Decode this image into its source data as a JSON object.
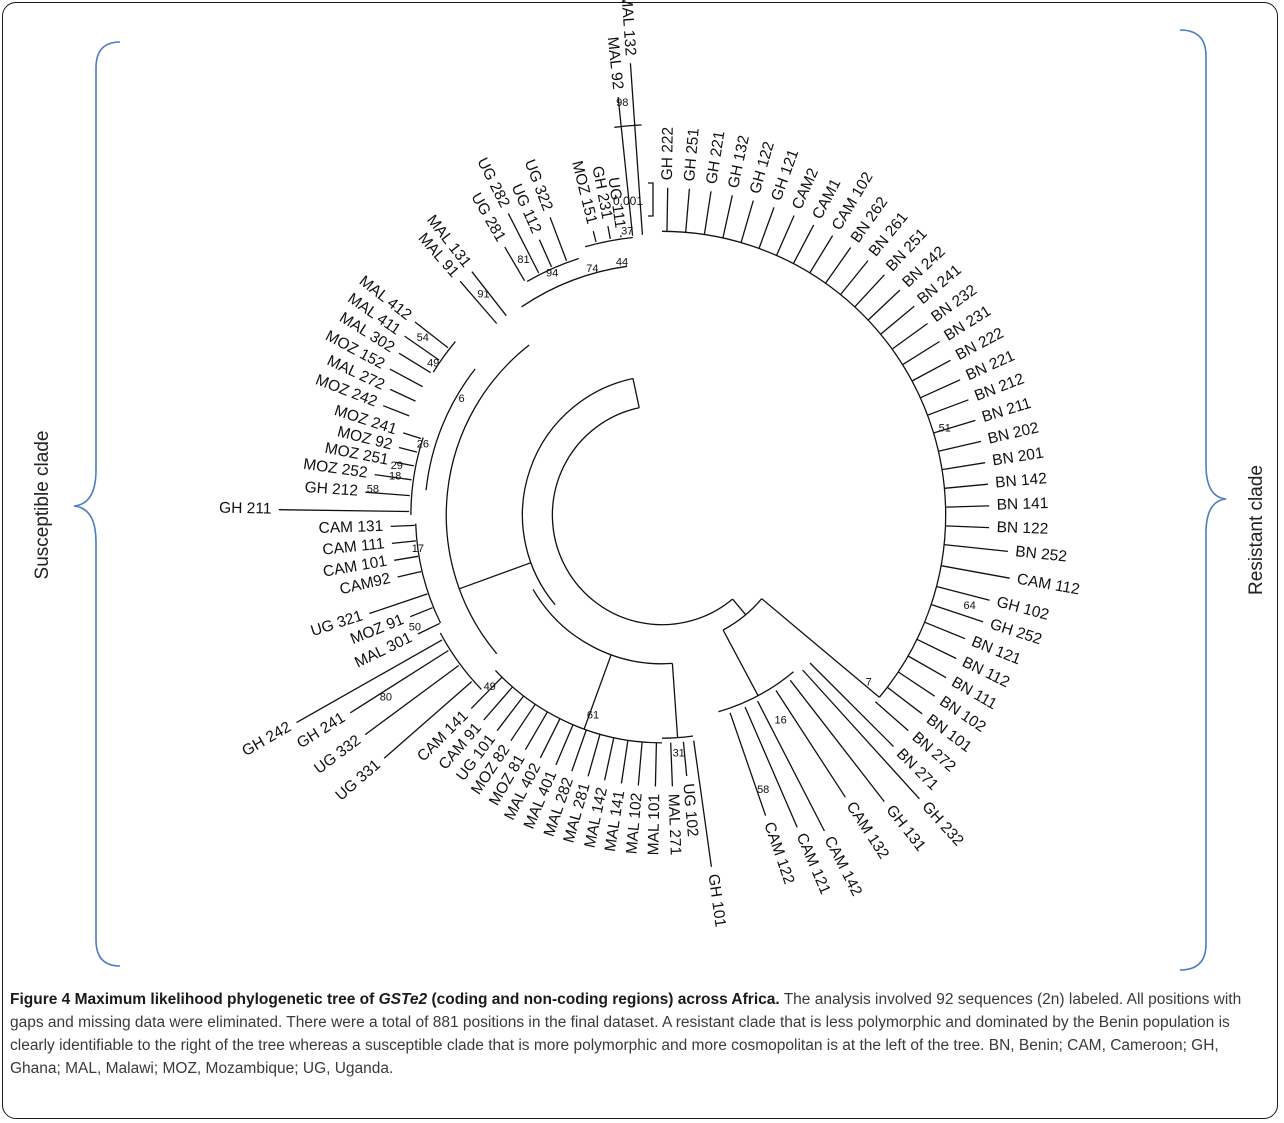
{
  "figure": {
    "scale_label": "0.001",
    "left_clade_label": "Susceptible clade",
    "right_clade_label": "Resistant clade",
    "bracket_color": "#4a7fc0",
    "caption_prefix": "Figure 4 Maximum likelihood phylogenetic tree of ",
    "caption_gene": "GSTe2",
    "caption_title_rest": " (coding and non-coding regions) across Africa.",
    "caption_body": " The analysis involved 92 sequences (2n) labeled. All positions with gaps and missing data were eliminated. There were a total of 881 positions in the final dataset. A resistant clade that is less polymorphic and dominated by the Benin population is clearly identifiable to the right of the tree whereas a susceptible clade that is more polymorphic and more cosmopolitan is at the left of the tree. BN, Benin; CAM, Cameroon; GH, Ghana; MAL, Malawi; MOZ, Mozambique; UG, Uganda."
  },
  "tips": [
    {
      "name": "GH 222",
      "theta": 271.0,
      "r": 360,
      "rot": -89
    },
    {
      "name": "GH 251",
      "theta": 274.8,
      "r": 360,
      "rot": -85
    },
    {
      "name": "GH 221",
      "theta": 278.6,
      "r": 360,
      "rot": -81
    },
    {
      "name": "GH 132",
      "theta": 282.4,
      "r": 360,
      "rot": -78
    },
    {
      "name": "GH 122",
      "theta": 286.2,
      "r": 360,
      "rot": -74
    },
    {
      "name": "GH 121",
      "theta": 290.0,
      "r": 360,
      "rot": -70
    },
    {
      "name": "CAM2",
      "theta": 293.8,
      "r": 360,
      "rot": -66
    },
    {
      "name": "CAM1",
      "theta": 297.6,
      "r": 360,
      "rot": -62
    },
    {
      "name": "CAM 102",
      "theta": 301.4,
      "r": 360,
      "rot": -59
    },
    {
      "name": "BN 262",
      "theta": 305.2,
      "r": 360,
      "rot": -55
    },
    {
      "name": "BN 261",
      "theta": 309.0,
      "r": 360,
      "rot": -51
    },
    {
      "name": "BN 251",
      "theta": 312.8,
      "r": 360,
      "rot": -47
    },
    {
      "name": "BN 242",
      "theta": 316.6,
      "r": 360,
      "rot": -43
    },
    {
      "name": "BN 241",
      "theta": 320.4,
      "r": 360,
      "rot": -40
    },
    {
      "name": "BN 232",
      "theta": 324.2,
      "r": 360,
      "rot": -36
    },
    {
      "name": "BN 231",
      "theta": 328.0,
      "r": 360,
      "rot": -32
    },
    {
      "name": "BN 222",
      "theta": 331.8,
      "r": 360,
      "rot": -28
    },
    {
      "name": "BN 221",
      "theta": 335.6,
      "r": 360,
      "rot": -24
    },
    {
      "name": "BN 212",
      "theta": 339.4,
      "r": 360,
      "rot": -21
    },
    {
      "name": "BN 211",
      "theta": 343.2,
      "r": 360,
      "rot": -17
    },
    {
      "name": "BN 202",
      "theta": 347.0,
      "r": 360,
      "rot": -13
    },
    {
      "name": "BN 201",
      "theta": 350.8,
      "r": 360,
      "rot": -9
    },
    {
      "name": "BN 142",
      "theta": 354.6,
      "r": 360,
      "rot": -5
    },
    {
      "name": "BN 141",
      "theta": 358.4,
      "r": 360,
      "rot": -2
    },
    {
      "name": "BN 122",
      "theta": 2.2,
      "r": 360,
      "rot": 2
    },
    {
      "name": "BN 252",
      "theta": 6.0,
      "r": 382,
      "rot": 6
    },
    {
      "name": "CAM 112",
      "theta": 10.3,
      "r": 388,
      "rot": 10
    },
    {
      "name": "GH 102",
      "theta": 14.6,
      "r": 372,
      "rot": 15
    },
    {
      "name": "GH 252",
      "theta": 18.4,
      "r": 372,
      "rot": 18
    },
    {
      "name": "BN 121",
      "theta": 22.2,
      "r": 360,
      "rot": 22
    },
    {
      "name": "BN 112",
      "theta": 26.0,
      "r": 360,
      "rot": 26
    },
    {
      "name": "BN 111",
      "theta": 29.8,
      "r": 360,
      "rot": 30
    },
    {
      "name": "BN 102",
      "theta": 33.6,
      "r": 360,
      "rot": 34
    },
    {
      "name": "BN 101",
      "theta": 37.4,
      "r": 360,
      "rot": 37
    },
    {
      "name": "BN 272",
      "theta": 41.2,
      "r": 360,
      "rot": 41
    },
    {
      "name": "BN 271",
      "theta": 45.0,
      "r": 360,
      "rot": 45
    },
    {
      "name": "GH 232",
      "theta": 47.8,
      "r": 420,
      "rot": 48
    },
    {
      "name": "GH 131",
      "theta": 52.2,
      "r": 398,
      "rot": 52
    },
    {
      "name": "CAM 132",
      "theta": 57.0,
      "r": 370,
      "rot": 57
    },
    {
      "name": "CAM 142",
      "theta": 62.8,
      "r": 390,
      "rot": 63
    },
    {
      "name": "CAM 121",
      "theta": 66.6,
      "r": 374,
      "rot": 67
    },
    {
      "name": "CAM 122",
      "theta": 71.0,
      "r": 350,
      "rot": 71
    },
    {
      "name": "GH 101",
      "theta": 82.0,
      "r": 390,
      "rot": 82
    },
    {
      "name": "UG 102",
      "theta": 84.6,
      "r": 290,
      "rot": 85
    },
    {
      "name": "MAL 271",
      "theta": 87.8,
      "r": 300,
      "rot": 88
    },
    {
      "name": "MAL 101",
      "theta": 91.4,
      "r": 300,
      "rot": -89
    },
    {
      "name": "MAL 102",
      "theta": 95.0,
      "r": 300,
      "rot": -85
    },
    {
      "name": "MAL 141",
      "theta": 98.6,
      "r": 300,
      "rot": -81
    },
    {
      "name": "MAL 142",
      "theta": 102.2,
      "r": 300,
      "rot": -78
    },
    {
      "name": "MAL 281",
      "theta": 105.8,
      "r": 300,
      "rot": -74
    },
    {
      "name": "MAL 282",
      "theta": 109.4,
      "r": 300,
      "rot": -71
    },
    {
      "name": "MAL 401",
      "theta": 113.0,
      "r": 300,
      "rot": -67
    },
    {
      "name": "MAL 402",
      "theta": 116.6,
      "r": 300,
      "rot": -63
    },
    {
      "name": "MOZ 81",
      "theta": 120.2,
      "r": 300,
      "rot": -60
    },
    {
      "name": "MOZ 82",
      "theta": 123.8,
      "r": 300,
      "rot": -56
    },
    {
      "name": "UG 101",
      "theta": 127.4,
      "r": 300,
      "rot": -53
    },
    {
      "name": "CAM 91",
      "theta": 131.0,
      "r": 300,
      "rot": -49
    },
    {
      "name": "CAM 141",
      "theta": 134.6,
      "r": 300,
      "rot": -45
    },
    {
      "name": "UG 331",
      "theta": 138.8,
      "r": 405,
      "rot": -41
    },
    {
      "name": "UG 332",
      "theta": 143.5,
      "r": 405,
      "rot": -37
    },
    {
      "name": "GH 241",
      "theta": 147.6,
      "r": 405,
      "rot": -32
    },
    {
      "name": "GH 242",
      "theta": 150.4,
      "r": 460,
      "rot": -30
    },
    {
      "name": "MAL 301",
      "theta": 154.0,
      "r": 300,
      "rot": -26
    },
    {
      "name": "MOZ 91",
      "theta": 158.0,
      "r": 300,
      "rot": -22
    },
    {
      "name": "UG 321",
      "theta": 161.4,
      "r": 340,
      "rot": -18
    },
    {
      "name": "CAM92",
      "theta": 166.8,
      "r": 300,
      "rot": -13
    },
    {
      "name": "CAM 101",
      "theta": 170.4,
      "r": 300,
      "rot": -10
    },
    {
      "name": "CAM 111",
      "theta": 174.0,
      "r": 300,
      "rot": -6
    },
    {
      "name": "CAM 131",
      "theta": 177.6,
      "r": 300,
      "rot": -2
    },
    {
      "name": "GH 211",
      "theta": 180.8,
      "r": 420,
      "rot": 1
    },
    {
      "name": "GH 212",
      "theta": 184.4,
      "r": 328,
      "rot": 4
    },
    {
      "name": "MOZ 252",
      "theta": 188.0,
      "r": 320,
      "rot": 8
    },
    {
      "name": "MOZ 251",
      "theta": 191.2,
      "r": 300,
      "rot": 11
    },
    {
      "name": "MOZ 92",
      "theta": 194.4,
      "r": 300,
      "rot": 14
    },
    {
      "name": "MOZ 241",
      "theta": 197.6,
      "r": 300,
      "rot": 18
    },
    {
      "name": "MOZ 242",
      "theta": 201.4,
      "r": 330,
      "rot": 21
    },
    {
      "name": "MAL 272",
      "theta": 204.8,
      "r": 330,
      "rot": 25
    },
    {
      "name": "MOZ 152",
      "theta": 208.2,
      "r": 340,
      "rot": 28
    },
    {
      "name": "MAL 302",
      "theta": 211.6,
      "r": 340,
      "rot": 32
    },
    {
      "name": "MAL 411",
      "theta": 214.8,
      "r": 345,
      "rot": 35
    },
    {
      "name": "MAL 412",
      "theta": 218.0,
      "r": 345,
      "rot": 38
    },
    {
      "name": "MAL 91",
      "theta": 229.2,
      "r": 340,
      "rot": 49
    },
    {
      "name": "MAL 131",
      "theta": 232.0,
      "r": 340,
      "rot": 52
    },
    {
      "name": "UG 281",
      "theta": 239.6,
      "r": 342,
      "rot": 60
    },
    {
      "name": "UG 282",
      "theta": 243.0,
      "r": 372,
      "rot": 63
    },
    {
      "name": "UG 112",
      "theta": 246.0,
      "r": 332,
      "rot": 66
    },
    {
      "name": "UG 322",
      "theta": 249.4,
      "r": 350,
      "rot": 69
    },
    {
      "name": "MOZ 151",
      "theta": 256.4,
      "r": 322,
      "rot": 76
    },
    {
      "name": "GH 231",
      "theta": 259.4,
      "r": 324,
      "rot": 79
    },
    {
      "name": "UG 111",
      "theta": 261.6,
      "r": 312,
      "rot": 82
    },
    {
      "name": "MAL 92",
      "theta": 264.0,
      "r": 460,
      "rot": 84
    },
    {
      "name": "MAL 132",
      "theta": 266.0,
      "r": 495,
      "rot": 86
    }
  ],
  "bootstrap": [
    {
      "v": "51",
      "theta": 343.0,
      "r": 318
    },
    {
      "v": "7",
      "theta": 39.0,
      "r": 286
    },
    {
      "v": "64",
      "theta": 16.5,
      "r": 345
    },
    {
      "v": "16",
      "theta": 60.0,
      "r": 255
    },
    {
      "v": "58",
      "theta": 69.8,
      "r": 315
    },
    {
      "v": "31",
      "theta": 86.0,
      "r": 257
    },
    {
      "v": "61",
      "theta": 109.0,
      "r": 228
    },
    {
      "v": "49",
      "theta": 135.0,
      "r": 262
    },
    {
      "v": "80",
      "theta": 146.5,
      "r": 356
    },
    {
      "v": "50",
      "theta": 155.5,
      "r": 292
    },
    {
      "v": "17",
      "theta": 172.0,
      "r": 265
    },
    {
      "v": "18",
      "theta": 188.2,
      "r": 290
    },
    {
      "v": "29",
      "theta": 190.5,
      "r": 290
    },
    {
      "v": "58",
      "theta": 185.0,
      "r": 312
    },
    {
      "v": "26",
      "theta": 196.4,
      "r": 268
    },
    {
      "v": "6",
      "theta": 210.0,
      "r": 249
    },
    {
      "v": "49",
      "theta": 213.5,
      "r": 295
    },
    {
      "v": "54",
      "theta": 216.5,
      "r": 320
    },
    {
      "v": "91",
      "theta": 231.0,
      "r": 305
    },
    {
      "v": "74",
      "theta": 254.2,
      "r": 275
    },
    {
      "v": "94",
      "theta": 245.5,
      "r": 285
    },
    {
      "v": "81",
      "theta": 241.5,
      "r": 312
    },
    {
      "v": "44",
      "theta": 261.0,
      "r": 275
    },
    {
      "v": "37",
      "theta": 263.0,
      "r": 307
    },
    {
      "v": "98",
      "theta": 264.5,
      "r": 445
    }
  ]
}
